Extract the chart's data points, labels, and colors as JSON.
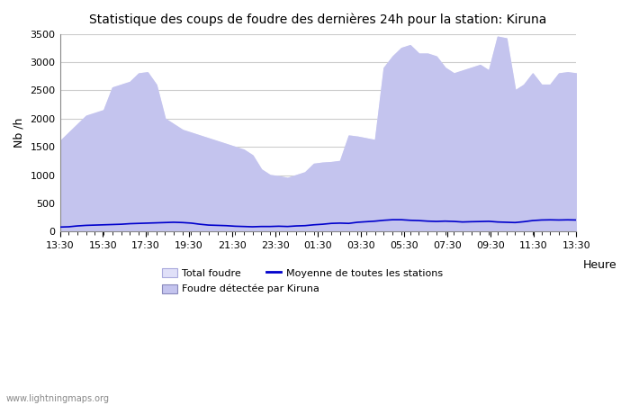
{
  "title": "Statistique des coups de foudre des dernières 24h pour la station: Kiruna",
  "xlabel": "Heure",
  "ylabel": "Nb /h",
  "ylim": [
    0,
    3500
  ],
  "yticks": [
    0,
    500,
    1000,
    1500,
    2000,
    2500,
    3000,
    3500
  ],
  "xtick_labels": [
    "13:30",
    "15:30",
    "17:30",
    "19:30",
    "21:30",
    "23:30",
    "01:30",
    "03:30",
    "05:30",
    "07:30",
    "09:30",
    "11:30",
    "13:30"
  ],
  "bg_color": "#ffffff",
  "plot_bg_color": "#ffffff",
  "grid_color": "#cccccc",
  "total_foudre_color": "#e0e0f8",
  "kiruna_color": "#c4c4ee",
  "moyenne_color": "#0000cc",
  "watermark": "www.lightningmaps.org",
  "total_foudre": [
    1600,
    1750,
    1900,
    2050,
    2100,
    2150,
    2550,
    2600,
    2650,
    2800,
    2820,
    2600,
    2000,
    1900,
    1800,
    1750,
    1700,
    1650,
    1600,
    1550,
    1500,
    1450,
    1350,
    1100,
    1000,
    980,
    950,
    1000,
    1050,
    1200,
    1220,
    1230,
    1250,
    1700,
    1680,
    1650,
    1620,
    2900,
    3100,
    3250,
    3300,
    3150,
    3150,
    3100,
    2900,
    2800,
    2850,
    2900,
    2950,
    2850,
    3450,
    3420,
    2500,
    2600,
    2800,
    2600,
    2600,
    2800,
    2820,
    2800
  ],
  "kiruna": [
    1600,
    1750,
    1900,
    2050,
    2100,
    2150,
    2550,
    2600,
    2650,
    2800,
    2820,
    2600,
    2000,
    1900,
    1800,
    1750,
    1700,
    1650,
    1600,
    1550,
    1500,
    1450,
    1350,
    1100,
    1000,
    980,
    950,
    1000,
    1050,
    1200,
    1220,
    1230,
    1250,
    1700,
    1680,
    1650,
    1620,
    2900,
    3100,
    3250,
    3300,
    3150,
    3150,
    3100,
    2900,
    2800,
    2850,
    2900,
    2950,
    2850,
    3450,
    3420,
    2500,
    2600,
    2800,
    2600,
    2600,
    2800,
    2820,
    2800
  ],
  "moyenne": [
    80,
    85,
    100,
    110,
    115,
    120,
    125,
    130,
    140,
    145,
    150,
    155,
    160,
    165,
    160,
    150,
    130,
    115,
    110,
    105,
    95,
    90,
    85,
    90,
    90,
    95,
    90,
    100,
    105,
    120,
    130,
    145,
    150,
    145,
    165,
    175,
    185,
    200,
    210,
    210,
    200,
    195,
    185,
    180,
    185,
    180,
    170,
    175,
    178,
    182,
    170,
    165,
    160,
    175,
    195,
    205,
    208,
    205,
    208,
    205
  ]
}
